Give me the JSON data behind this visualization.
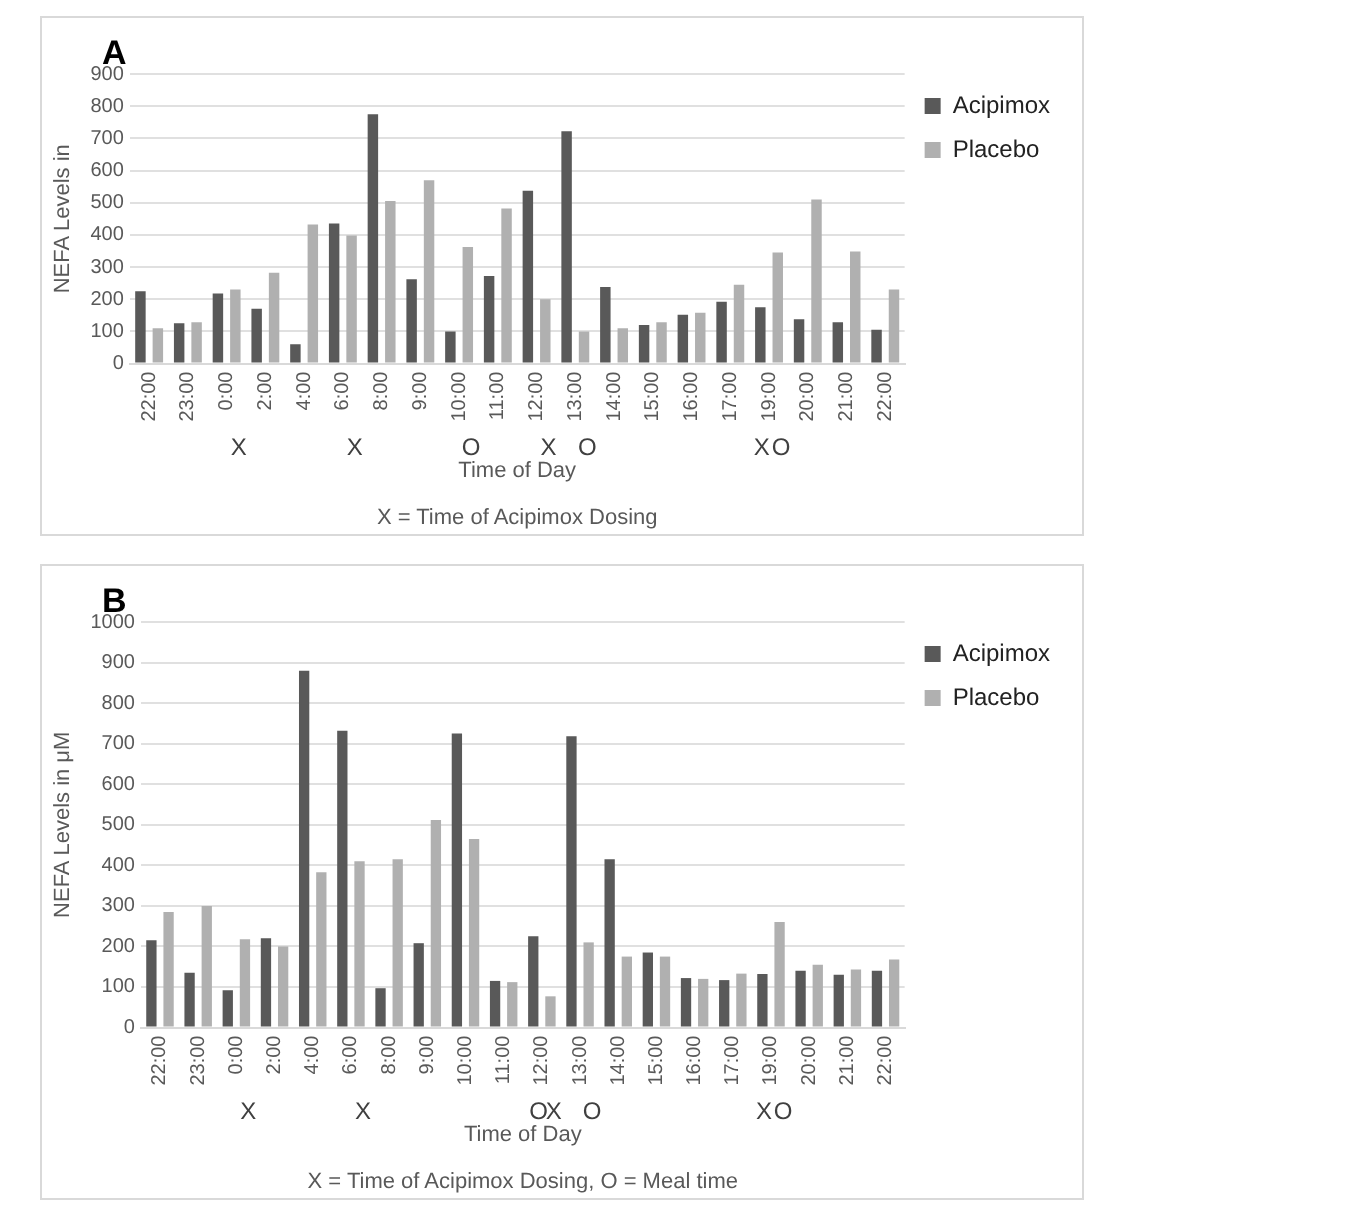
{
  "chart_data": [
    {
      "type": "bar",
      "title": "A",
      "xlabel": "Time of Day",
      "ylabel": "NEFA Levels in",
      "categories": [
        "22:00",
        "23:00",
        "0:00",
        "2:00",
        "4:00",
        "6:00",
        "8:00",
        "9:00",
        "10:00",
        "11:00",
        "12:00",
        "13:00",
        "14:00",
        "15:00",
        "16:00",
        "17:00",
        "19:00",
        "20:00",
        "21:00",
        "22:00"
      ],
      "series": [
        {
          "name": "Acipimox",
          "color": "#595959",
          "values": [
            225,
            125,
            218,
            170,
            60,
            435,
            775,
            262,
            100,
            272,
            537,
            722,
            238,
            120,
            152,
            192,
            175,
            138,
            128,
            105
          ]
        },
        {
          "name": "Placebo",
          "color": "#b0b0b0",
          "values": [
            110,
            128,
            230,
            282,
            432,
            398,
            505,
            570,
            362,
            482,
            200,
            100,
            110,
            128,
            158,
            245,
            345,
            510,
            348,
            230
          ]
        }
      ],
      "ylim": [
        0,
        900
      ],
      "yticks": [
        0,
        100,
        200,
        300,
        400,
        500,
        600,
        700,
        800,
        900
      ],
      "grid": "y",
      "legend": "top right",
      "annotations": [
        "X",
        "X",
        "X",
        "X",
        "O",
        "O",
        "O",
        "X = Time of Acipimox Dosing"
      ]
    },
    {
      "type": "bar",
      "title": "B",
      "xlabel": "Time of Day",
      "ylabel": "NEFA Levels in μM",
      "categories": [
        "22:00",
        "23:00",
        "0:00",
        "2:00",
        "4:00",
        "6:00",
        "8:00",
        "9:00",
        "10:00",
        "11:00",
        "12:00",
        "13:00",
        "14:00",
        "15:00",
        "16:00",
        "17:00",
        "19:00",
        "20:00",
        "21:00",
        "22:00"
      ],
      "series": [
        {
          "name": "Acipimox",
          "color": "#595959",
          "values": [
            215,
            135,
            92,
            220,
            880,
            732,
            97,
            208,
            725,
            115,
            225,
            718,
            415,
            185,
            122,
            117,
            132,
            140,
            130,
            140
          ]
        },
        {
          "name": "Placebo",
          "color": "#b0b0b0",
          "values": [
            285,
            300,
            218,
            200,
            383,
            410,
            415,
            512,
            465,
            112,
            77,
            210,
            175,
            175,
            120,
            133,
            260,
            155,
            143,
            168
          ]
        }
      ],
      "ylim": [
        0,
        1000
      ],
      "yticks": [
        0,
        100,
        200,
        300,
        400,
        500,
        600,
        700,
        800,
        900,
        1000
      ],
      "grid": "y",
      "legend": "top right",
      "annotations": [
        "X",
        "X",
        "X",
        "X",
        "O",
        "O",
        "O",
        "X = Time of Acipimox Dosing, O = Meal time"
      ]
    }
  ]
}
